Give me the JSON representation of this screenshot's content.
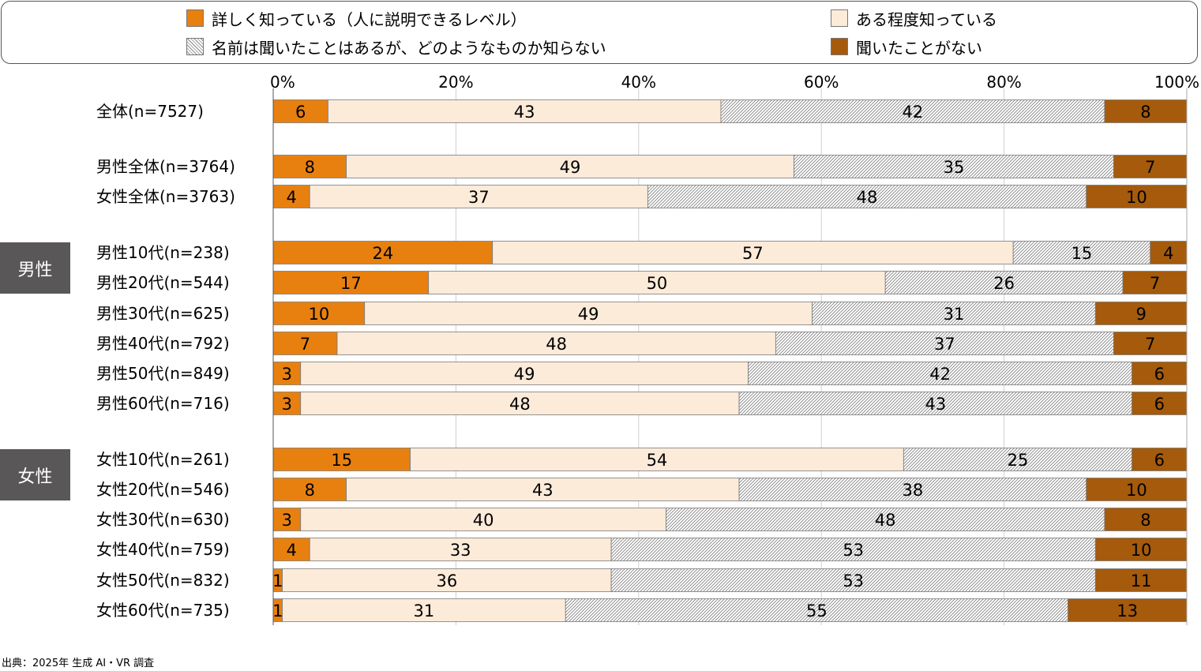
{
  "colors": {
    "detail": "#E8800F",
    "some": "#FDEBDA",
    "heard": "#FFFFFF",
    "never": "#A55A0C"
  },
  "legend": [
    {
      "key": "detail",
      "label": "詳しく知っている（人に説明できるレベル）"
    },
    {
      "key": "some",
      "label": "ある程度知っている"
    },
    {
      "key": "heard",
      "label": "名前は聞いたことはあるが、どのようなものか知らない"
    },
    {
      "key": "never",
      "label": "聞いたことがない"
    }
  ],
  "groups": {
    "male": "男性",
    "female": "女性"
  },
  "source": "出典：2025年 生成 AI・VR 調査",
  "chart_data": {
    "type": "bar",
    "orientation": "horizontal",
    "stacked": true,
    "x_ticks": [
      "0%",
      "20%",
      "40%",
      "60%",
      "80%",
      "100%"
    ],
    "xlim": [
      0,
      100
    ],
    "categories": [
      "全体(n=7527)",
      "男性全体(n=3764)",
      "女性全体(n=3763)",
      "男性10代(n=238)",
      "男性20代(n=544)",
      "男性30代(n=625)",
      "男性40代(n=792)",
      "男性50代(n=849)",
      "男性60代(n=716)",
      "女性10代(n=261)",
      "女性20代(n=546)",
      "女性30代(n=630)",
      "女性40代(n=759)",
      "女性50代(n=832)",
      "女性60代(n=735)"
    ],
    "series": [
      {
        "name": "詳しく知っている（人に説明できるレベル）",
        "key": "detail",
        "values": [
          6,
          8,
          4,
          24,
          17,
          10,
          7,
          3,
          3,
          15,
          8,
          3,
          4,
          1,
          1
        ]
      },
      {
        "name": "ある程度知っている",
        "key": "some",
        "values": [
          43,
          49,
          37,
          57,
          50,
          49,
          48,
          49,
          48,
          54,
          43,
          40,
          33,
          36,
          31
        ]
      },
      {
        "name": "名前は聞いたことはあるが、どのようなものか知らない",
        "key": "heard",
        "values": [
          42,
          35,
          48,
          15,
          26,
          31,
          37,
          42,
          43,
          25,
          38,
          48,
          53,
          53,
          55
        ]
      },
      {
        "name": "聞いたことがない",
        "key": "never",
        "values": [
          8,
          7,
          10,
          4,
          7,
          9,
          7,
          6,
          6,
          6,
          10,
          8,
          10,
          11,
          13
        ]
      }
    ],
    "legend_position": "top",
    "grid": true
  }
}
